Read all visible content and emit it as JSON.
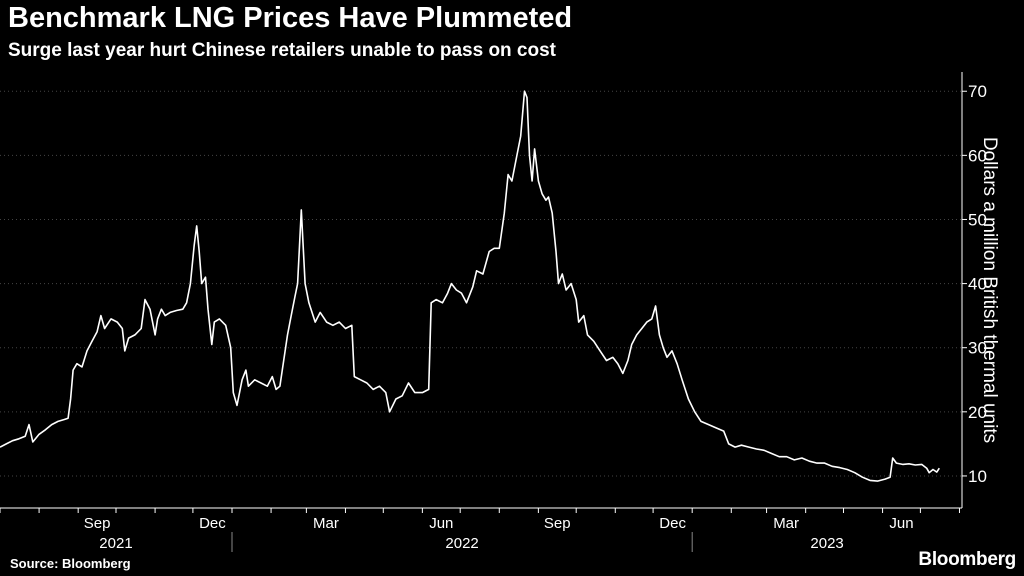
{
  "title": "Benchmark LNG Prices Have Plummeted",
  "subtitle": "Surge last year hurt Chinese retailers unable to pass on cost",
  "source": "Source: Bloomberg",
  "brand": "Bloomberg",
  "colors": {
    "background": "#000000",
    "line": "#ffffff",
    "grid": "#444444",
    "text": "#ffffff"
  },
  "chart_data": {
    "type": "line",
    "title": "Benchmark LNG Prices Have Plummeted",
    "subtitle": "Surge last year hurt Chinese retailers unable to pass on cost",
    "ylabel": "Dollars a million British thermal units",
    "y_axis_side": "right",
    "ylim": [
      5,
      73
    ],
    "yticks": [
      10,
      20,
      30,
      40,
      50,
      60,
      70
    ],
    "xlim": [
      "2021-07-01",
      "2023-08-03"
    ],
    "month_ticks": [
      {
        "label": "Sep",
        "date": "2021-09-01"
      },
      {
        "label": "Dec",
        "date": "2021-12-01"
      },
      {
        "label": "Mar",
        "date": "2022-03-01"
      },
      {
        "label": "Jun",
        "date": "2022-06-01"
      },
      {
        "label": "Sep",
        "date": "2022-09-01"
      },
      {
        "label": "Dec",
        "date": "2022-12-01"
      },
      {
        "label": "Mar",
        "date": "2023-03-01"
      },
      {
        "label": "Jun",
        "date": "2023-06-01"
      }
    ],
    "year_labels": [
      {
        "label": "2021",
        "start": "2021-07-01",
        "end": "2022-01-01"
      },
      {
        "label": "2022",
        "start": "2022-01-01",
        "end": "2023-01-01"
      },
      {
        "label": "2023",
        "start": "2023-01-01",
        "end": "2023-08-03"
      }
    ],
    "grid": true,
    "series": [
      {
        "points": [
          [
            "2021-07-01",
            14.5
          ],
          [
            "2021-07-06",
            15.0
          ],
          [
            "2021-07-11",
            15.5
          ],
          [
            "2021-07-16",
            15.8
          ],
          [
            "2021-07-21",
            16.2
          ],
          [
            "2021-07-24",
            18.0
          ],
          [
            "2021-07-27",
            15.3
          ],
          [
            "2021-08-01",
            16.5
          ],
          [
            "2021-08-06",
            17.2
          ],
          [
            "2021-08-11",
            18.0
          ],
          [
            "2021-08-16",
            18.5
          ],
          [
            "2021-08-21",
            18.8
          ],
          [
            "2021-08-24",
            19.0
          ],
          [
            "2021-08-26",
            22.0
          ],
          [
            "2021-08-28",
            26.5
          ],
          [
            "2021-08-31",
            27.5
          ],
          [
            "2021-09-04",
            27.0
          ],
          [
            "2021-09-08",
            29.5
          ],
          [
            "2021-09-12",
            31.0
          ],
          [
            "2021-09-16",
            32.5
          ],
          [
            "2021-09-19",
            35.0
          ],
          [
            "2021-09-22",
            33.0
          ],
          [
            "2021-09-27",
            34.5
          ],
          [
            "2021-10-02",
            34.0
          ],
          [
            "2021-10-06",
            33.0
          ],
          [
            "2021-10-08",
            29.5
          ],
          [
            "2021-10-11",
            31.5
          ],
          [
            "2021-10-16",
            32.0
          ],
          [
            "2021-10-21",
            33.0
          ],
          [
            "2021-10-24",
            37.5
          ],
          [
            "2021-10-28",
            36.0
          ],
          [
            "2021-11-01",
            32.0
          ],
          [
            "2021-11-03",
            34.5
          ],
          [
            "2021-11-06",
            36.0
          ],
          [
            "2021-11-09",
            35.0
          ],
          [
            "2021-11-13",
            35.5
          ],
          [
            "2021-11-18",
            35.8
          ],
          [
            "2021-11-23",
            36.0
          ],
          [
            "2021-11-26",
            37.0
          ],
          [
            "2021-11-29",
            40.0
          ],
          [
            "2021-12-02",
            46.0
          ],
          [
            "2021-12-04",
            49.0
          ],
          [
            "2021-12-06",
            45.0
          ],
          [
            "2021-12-08",
            40.0
          ],
          [
            "2021-12-11",
            41.0
          ],
          [
            "2021-12-13",
            36.0
          ],
          [
            "2021-12-16",
            30.5
          ],
          [
            "2021-12-18",
            34.0
          ],
          [
            "2021-12-22",
            34.5
          ],
          [
            "2021-12-27",
            33.5
          ],
          [
            "2021-12-31",
            30.0
          ],
          [
            "2022-01-02",
            23.0
          ],
          [
            "2022-01-05",
            21.0
          ],
          [
            "2022-01-09",
            25.0
          ],
          [
            "2022-01-12",
            26.5
          ],
          [
            "2022-01-14",
            24.0
          ],
          [
            "2022-01-19",
            25.0
          ],
          [
            "2022-01-24",
            24.5
          ],
          [
            "2022-01-29",
            24.0
          ],
          [
            "2022-02-02",
            25.5
          ],
          [
            "2022-02-05",
            23.5
          ],
          [
            "2022-02-08",
            24.0
          ],
          [
            "2022-02-11",
            28.0
          ],
          [
            "2022-02-14",
            32.0
          ],
          [
            "2022-02-17",
            35.0
          ],
          [
            "2022-02-20",
            38.0
          ],
          [
            "2022-02-22",
            40.0
          ],
          [
            "2022-02-25",
            51.5
          ],
          [
            "2022-02-28",
            40.0
          ],
          [
            "2022-03-03",
            37.0
          ],
          [
            "2022-03-08",
            34.0
          ],
          [
            "2022-03-12",
            35.5
          ],
          [
            "2022-03-17",
            34.0
          ],
          [
            "2022-03-22",
            33.5
          ],
          [
            "2022-03-27",
            34.0
          ],
          [
            "2022-04-01",
            33.0
          ],
          [
            "2022-04-06",
            33.5
          ],
          [
            "2022-04-08",
            25.5
          ],
          [
            "2022-04-13",
            25.0
          ],
          [
            "2022-04-18",
            24.5
          ],
          [
            "2022-04-23",
            23.5
          ],
          [
            "2022-04-28",
            24.0
          ],
          [
            "2022-05-03",
            23.0
          ],
          [
            "2022-05-06",
            20.0
          ],
          [
            "2022-05-11",
            22.0
          ],
          [
            "2022-05-16",
            22.5
          ],
          [
            "2022-05-21",
            24.5
          ],
          [
            "2022-05-26",
            23.0
          ],
          [
            "2022-06-01",
            23.0
          ],
          [
            "2022-06-06",
            23.5
          ],
          [
            "2022-06-08",
            37.0
          ],
          [
            "2022-06-12",
            37.5
          ],
          [
            "2022-06-17",
            37.0
          ],
          [
            "2022-06-21",
            38.5
          ],
          [
            "2022-06-24",
            40.0
          ],
          [
            "2022-06-28",
            39.0
          ],
          [
            "2022-07-02",
            38.5
          ],
          [
            "2022-07-06",
            37.0
          ],
          [
            "2022-07-11",
            39.5
          ],
          [
            "2022-07-14",
            42.0
          ],
          [
            "2022-07-19",
            41.5
          ],
          [
            "2022-07-24",
            45.0
          ],
          [
            "2022-07-28",
            45.5
          ],
          [
            "2022-08-01",
            45.5
          ],
          [
            "2022-08-05",
            51.0
          ],
          [
            "2022-08-08",
            57.0
          ],
          [
            "2022-08-11",
            56.0
          ],
          [
            "2022-08-15",
            60.0
          ],
          [
            "2022-08-18",
            63.0
          ],
          [
            "2022-08-21",
            70.0
          ],
          [
            "2022-08-23",
            69.0
          ],
          [
            "2022-08-25",
            60.0
          ],
          [
            "2022-08-27",
            56.0
          ],
          [
            "2022-08-29",
            61.0
          ],
          [
            "2022-09-01",
            56.0
          ],
          [
            "2022-09-04",
            54.0
          ],
          [
            "2022-09-07",
            53.0
          ],
          [
            "2022-09-09",
            53.5
          ],
          [
            "2022-09-12",
            51.0
          ],
          [
            "2022-09-15",
            45.0
          ],
          [
            "2022-09-17",
            40.0
          ],
          [
            "2022-09-20",
            41.5
          ],
          [
            "2022-09-23",
            39.0
          ],
          [
            "2022-09-27",
            40.0
          ],
          [
            "2022-10-01",
            37.5
          ],
          [
            "2022-10-03",
            34.0
          ],
          [
            "2022-10-07",
            35.0
          ],
          [
            "2022-10-10",
            32.0
          ],
          [
            "2022-10-15",
            31.0
          ],
          [
            "2022-10-20",
            29.5
          ],
          [
            "2022-10-25",
            28.0
          ],
          [
            "2022-10-30",
            28.5
          ],
          [
            "2022-11-03",
            27.5
          ],
          [
            "2022-11-07",
            26.0
          ],
          [
            "2022-11-11",
            28.0
          ],
          [
            "2022-11-14",
            30.5
          ],
          [
            "2022-11-18",
            32.0
          ],
          [
            "2022-11-22",
            33.0
          ],
          [
            "2022-11-26",
            34.0
          ],
          [
            "2022-11-30",
            34.5
          ],
          [
            "2022-12-03",
            36.5
          ],
          [
            "2022-12-06",
            32.0
          ],
          [
            "2022-12-09",
            30.0
          ],
          [
            "2022-12-12",
            28.5
          ],
          [
            "2022-12-16",
            29.5
          ],
          [
            "2022-12-20",
            27.5
          ],
          [
            "2022-12-24",
            25.0
          ],
          [
            "2022-12-29",
            22.0
          ],
          [
            "2023-01-03",
            20.0
          ],
          [
            "2023-01-08",
            18.5
          ],
          [
            "2023-01-14",
            18.0
          ],
          [
            "2023-01-20",
            17.5
          ],
          [
            "2023-01-26",
            17.0
          ],
          [
            "2023-01-30",
            15.0
          ],
          [
            "2023-02-04",
            14.5
          ],
          [
            "2023-02-09",
            14.8
          ],
          [
            "2023-02-15",
            14.5
          ],
          [
            "2023-02-21",
            14.2
          ],
          [
            "2023-02-27",
            14.0
          ],
          [
            "2023-03-05",
            13.5
          ],
          [
            "2023-03-11",
            13.0
          ],
          [
            "2023-03-17",
            13.0
          ],
          [
            "2023-03-23",
            12.5
          ],
          [
            "2023-03-29",
            12.8
          ],
          [
            "2023-04-04",
            12.3
          ],
          [
            "2023-04-10",
            12.0
          ],
          [
            "2023-04-16",
            12.0
          ],
          [
            "2023-04-22",
            11.5
          ],
          [
            "2023-04-28",
            11.3
          ],
          [
            "2023-05-04",
            11.0
          ],
          [
            "2023-05-10",
            10.5
          ],
          [
            "2023-05-16",
            9.8
          ],
          [
            "2023-05-22",
            9.3
          ],
          [
            "2023-05-28",
            9.2
          ],
          [
            "2023-06-03",
            9.5
          ],
          [
            "2023-06-07",
            9.8
          ],
          [
            "2023-06-09",
            12.8
          ],
          [
            "2023-06-12",
            12.0
          ],
          [
            "2023-06-17",
            11.8
          ],
          [
            "2023-06-22",
            11.9
          ],
          [
            "2023-06-27",
            11.7
          ],
          [
            "2023-07-02",
            11.8
          ],
          [
            "2023-07-06",
            11.2
          ],
          [
            "2023-07-08",
            10.5
          ],
          [
            "2023-07-11",
            11.0
          ],
          [
            "2023-07-14",
            10.6
          ],
          [
            "2023-07-16",
            11.2
          ]
        ]
      }
    ]
  }
}
